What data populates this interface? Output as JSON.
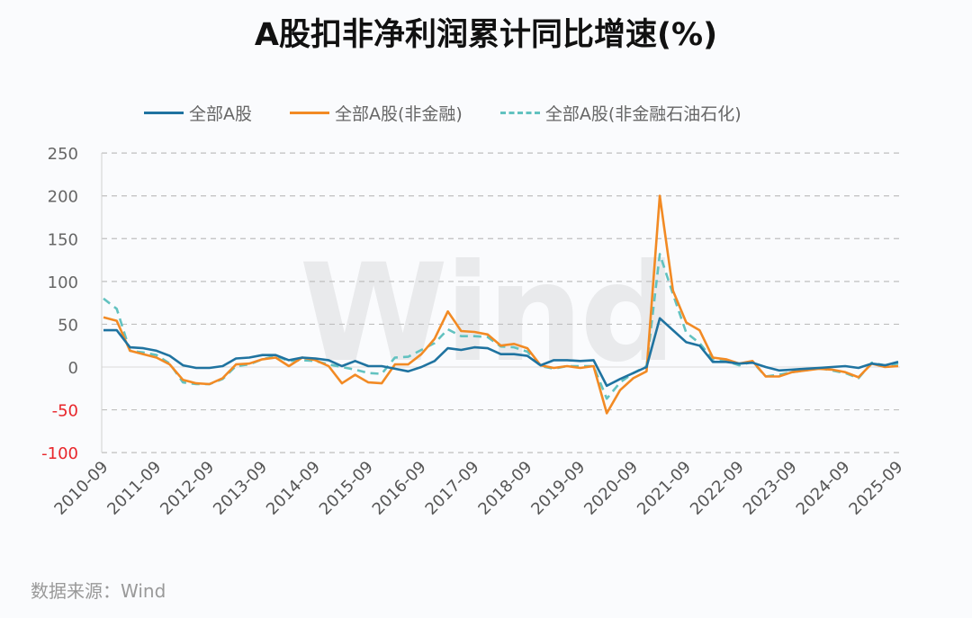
{
  "title": "A股扣非净利润累计同比增速(%)",
  "source": "数据来源：Wind",
  "watermark": "Wind",
  "colors": {
    "series_all": "#1f73a0",
    "series_nonfin": "#f28a24",
    "series_nonfin_ex_petro": "#62c2c0",
    "axis_label": "#666666",
    "negative_label": "#e8262b",
    "grid": "#bfbfbf",
    "background": "#fafbfd"
  },
  "legend": [
    {
      "label": "全部A股",
      "style": "solid",
      "color": "#1f73a0"
    },
    {
      "label": "全部A股(非金融)",
      "style": "solid",
      "color": "#f28a24"
    },
    {
      "label": "全部A股(非金融石油石化)",
      "style": "dashed",
      "color": "#62c2c0"
    }
  ],
  "chart_data": {
    "type": "line",
    "title": "A股扣非净利润累计同比增速(%)",
    "xlabel": "",
    "ylabel": "",
    "ylim": [
      -100,
      250
    ],
    "yticks": [
      250,
      200,
      150,
      100,
      50,
      0,
      -50,
      -100
    ],
    "grid": true,
    "legend_position": "top",
    "x_tick_labels": [
      "2010-09",
      "2011-09",
      "2012-09",
      "2013-09",
      "2014-09",
      "2015-09",
      "2016-09",
      "2017-09",
      "2018-09",
      "2019-09",
      "2020-09",
      "2021-09",
      "2022-09",
      "2023-09",
      "2024-09",
      "2025-09"
    ],
    "x": [
      "2010-09",
      "2010-12",
      "2011-03",
      "2011-06",
      "2011-09",
      "2011-12",
      "2012-03",
      "2012-06",
      "2012-09",
      "2012-12",
      "2013-03",
      "2013-06",
      "2013-09",
      "2013-12",
      "2014-03",
      "2014-06",
      "2014-09",
      "2014-12",
      "2015-03",
      "2015-06",
      "2015-09",
      "2015-12",
      "2016-03",
      "2016-06",
      "2016-09",
      "2016-12",
      "2017-03",
      "2017-06",
      "2017-09",
      "2017-12",
      "2018-03",
      "2018-06",
      "2018-09",
      "2018-12",
      "2019-03",
      "2019-06",
      "2019-09",
      "2019-12",
      "2020-03",
      "2020-06",
      "2020-09",
      "2020-12",
      "2021-03",
      "2021-06",
      "2021-09",
      "2021-12",
      "2022-03",
      "2022-06",
      "2022-09",
      "2022-12",
      "2023-03",
      "2023-06",
      "2023-09",
      "2023-12",
      "2024-03",
      "2024-06",
      "2024-09",
      "2024-12",
      "2025-03",
      "2025-06",
      "2025-09"
    ],
    "series": [
      {
        "name": "全部A股",
        "style": "solid",
        "color": "#1f73a0",
        "values": [
          43,
          43,
          23,
          22,
          19,
          13,
          2,
          -1,
          -1,
          1,
          10,
          11,
          14,
          14,
          8,
          11,
          10,
          8,
          1,
          7,
          1,
          1,
          -2,
          -5,
          0,
          7,
          22,
          20,
          23,
          22,
          15,
          15,
          13,
          2,
          8,
          8,
          7,
          8,
          -22,
          -14,
          -7,
          0,
          57,
          43,
          29,
          25,
          6,
          6,
          4,
          5,
          0,
          -4,
          -3,
          -2,
          -1,
          0,
          1,
          -1,
          4,
          2,
          6
        ]
      },
      {
        "name": "全部A股(非金融)",
        "style": "solid",
        "color": "#f28a24",
        "values": [
          58,
          54,
          19,
          15,
          11,
          3,
          -15,
          -19,
          -20,
          -13,
          3,
          4,
          9,
          11,
          1,
          11,
          8,
          1,
          -19,
          -9,
          -18,
          -19,
          3,
          3,
          15,
          33,
          65,
          42,
          41,
          38,
          25,
          27,
          22,
          2,
          -1,
          1,
          -1,
          1,
          -54,
          -27,
          -13,
          -5,
          200,
          89,
          52,
          43,
          11,
          9,
          4,
          7,
          -11,
          -11,
          -6,
          -4,
          -2,
          -3,
          -6,
          -12,
          4,
          0,
          1
        ]
      },
      {
        "name": "全部A股(非金融石油石化)",
        "style": "dashed",
        "color": "#62c2c0",
        "values": [
          80,
          68,
          19,
          17,
          14,
          4,
          -18,
          -20,
          -20,
          -14,
          1,
          3,
          9,
          13,
          7,
          8,
          7,
          3,
          0,
          -3,
          -7,
          -8,
          11,
          12,
          20,
          28,
          44,
          36,
          36,
          35,
          24,
          23,
          18,
          1,
          -2,
          1,
          1,
          1,
          -37,
          -18,
          -7,
          1,
          132,
          85,
          40,
          28,
          9,
          7,
          2,
          6,
          -11,
          -9,
          -6,
          -4,
          -1,
          -4,
          -7,
          -13,
          5,
          2,
          4
        ]
      }
    ]
  }
}
